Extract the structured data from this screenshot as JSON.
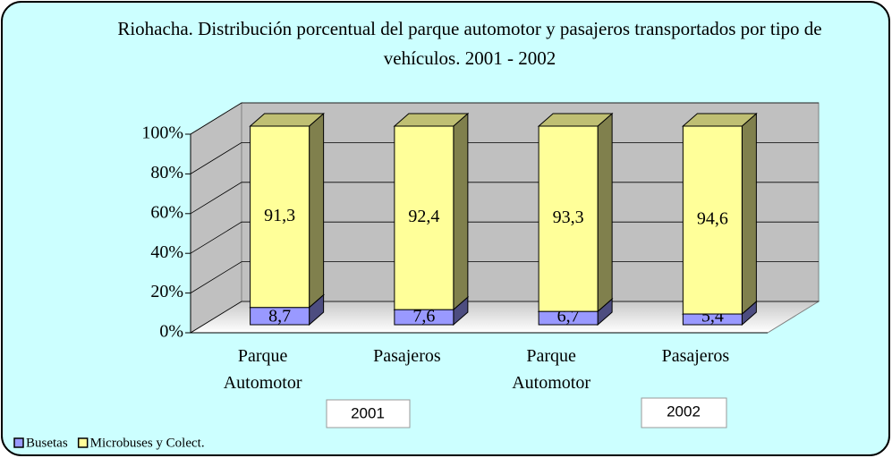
{
  "chart_data": {
    "type": "bar3d_stacked",
    "title": "Riohacha. Distribución porcentual del parque automotor y pasajeros transportados por tipo de vehículos. 2001 - 2002",
    "categories": [
      "Parque Automotor",
      "Pasajeros",
      "Parque Automotor",
      "Pasajeros"
    ],
    "groups": [
      "2001",
      "2002"
    ],
    "series": [
      {
        "name": "Busetas",
        "color": "#9999ff",
        "values": [
          8.7,
          7.6,
          6.7,
          5.4
        ],
        "value_labels": [
          "8,7",
          "7,6",
          "6,7",
          "5,4"
        ]
      },
      {
        "name": "Microbuses y Colect.",
        "color": "#ffff99",
        "values": [
          91.3,
          92.4,
          93.3,
          94.6
        ],
        "value_labels": [
          "91,3",
          "92,4",
          "93,3",
          "94,6"
        ]
      }
    ],
    "ylim": [
      0,
      100
    ],
    "yticks": [
      {
        "value": 0,
        "label": "0%"
      },
      {
        "value": 20,
        "label": "20%"
      },
      {
        "value": 40,
        "label": "40%"
      },
      {
        "value": 60,
        "label": "60%"
      },
      {
        "value": 80,
        "label": "80%"
      },
      {
        "value": 100,
        "label": "100%"
      }
    ],
    "grid": true,
    "legend": "bottom-left"
  }
}
